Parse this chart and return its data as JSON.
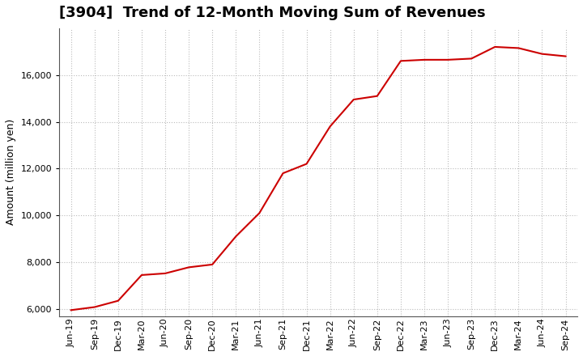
{
  "title": "[3904]  Trend of 12-Month Moving Sum of Revenues",
  "ylabel": "Amount (million yen)",
  "line_color": "#cc0000",
  "background_color": "#ffffff",
  "plot_bg_color": "#ffffff",
  "grid_color": "#bbbbbb",
  "x_labels": [
    "Jun-19",
    "Sep-19",
    "Dec-19",
    "Mar-20",
    "Jun-20",
    "Sep-20",
    "Dec-20",
    "Mar-21",
    "Jun-21",
    "Sep-21",
    "Dec-21",
    "Mar-22",
    "Jun-22",
    "Sep-22",
    "Dec-22",
    "Mar-23",
    "Jun-23",
    "Sep-23",
    "Dec-23",
    "Mar-24",
    "Jun-24",
    "Sep-24"
  ],
  "values": [
    5950,
    6080,
    6350,
    7450,
    7520,
    7780,
    7900,
    9100,
    10100,
    11800,
    12200,
    13800,
    14950,
    15100,
    16600,
    16650,
    16650,
    16700,
    17200,
    17150,
    16900,
    16800
  ],
  "ylim_min": 5700,
  "ylim_max": 18000,
  "yticks": [
    6000,
    8000,
    10000,
    12000,
    14000,
    16000
  ],
  "title_fontsize": 13,
  "label_fontsize": 9,
  "tick_fontsize": 8
}
